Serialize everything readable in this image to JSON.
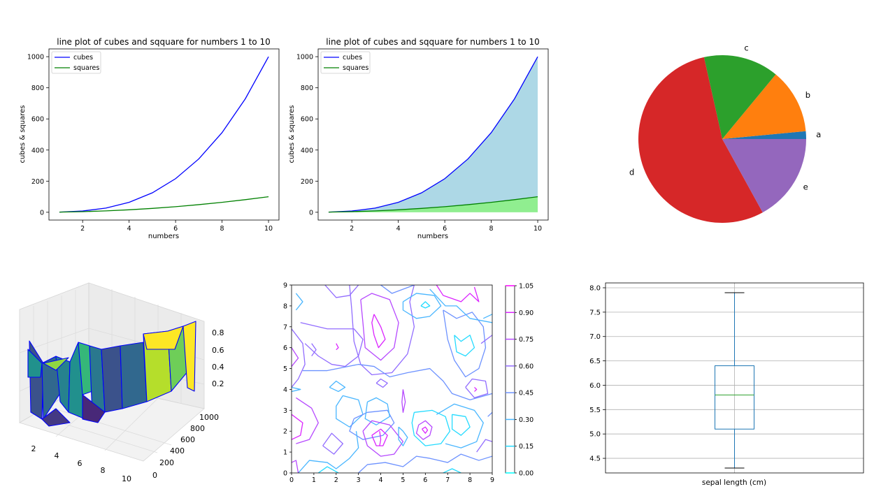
{
  "chart_data": [
    {
      "type": "line",
      "title": "line plot of cubes and sqquare for numbers 1 to 10",
      "xlabel": "numbers",
      "ylabel": "cubes & squares",
      "x": [
        1,
        2,
        3,
        4,
        5,
        6,
        7,
        8,
        9,
        10
      ],
      "xlim": [
        0.55,
        10.45
      ],
      "ylim": [
        -50,
        1050
      ],
      "xticks": [
        2,
        4,
        6,
        8,
        10
      ],
      "yticks": [
        0,
        200,
        400,
        600,
        800,
        1000
      ],
      "legend": "upper-left",
      "series": [
        {
          "name": "cubes",
          "values": [
            1,
            8,
            27,
            64,
            125,
            216,
            343,
            512,
            729,
            1000
          ],
          "color": "#0000ff"
        },
        {
          "name": "squares",
          "values": [
            1,
            4,
            9,
            16,
            25,
            36,
            49,
            64,
            81,
            100
          ],
          "color": "#008000"
        }
      ]
    },
    {
      "type": "area",
      "title": "line plot of cubes and sqquare for numbers 1 to 10",
      "xlabel": "numbers",
      "ylabel": "cubes & squares",
      "x": [
        1,
        2,
        3,
        4,
        5,
        6,
        7,
        8,
        9,
        10
      ],
      "xlim": [
        0.55,
        10.45
      ],
      "ylim": [
        -50,
        1050
      ],
      "xticks": [
        2,
        4,
        6,
        8,
        10
      ],
      "yticks": [
        0,
        200,
        400,
        600,
        800,
        1000
      ],
      "legend": "upper-left",
      "series": [
        {
          "name": "cubes",
          "values": [
            1,
            8,
            27,
            64,
            125,
            216,
            343,
            512,
            729,
            1000
          ],
          "color": "#0000ff",
          "fill": "#add8e6"
        },
        {
          "name": "squares",
          "values": [
            1,
            4,
            9,
            16,
            25,
            36,
            49,
            64,
            81,
            100
          ],
          "color": "#008000",
          "fill": "#90ee90"
        }
      ]
    },
    {
      "type": "pie",
      "labels": [
        "a",
        "b",
        "c",
        "d",
        "e"
      ],
      "values": [
        1.5,
        12.5,
        14.5,
        54.5,
        17
      ],
      "colors": [
        "#1f77b4",
        "#ff7f0e",
        "#2ca02c",
        "#d62728",
        "#9467bd"
      ]
    },
    {
      "type": "surface3d",
      "xticks": [
        2,
        4,
        6,
        8,
        10
      ],
      "yticks": [
        0,
        200,
        400,
        600,
        800,
        1000
      ],
      "zticks": [
        "0.2",
        "0.4",
        "0.6",
        "0.8"
      ],
      "edge_color": "#0000ff",
      "colormap": "viridis"
    },
    {
      "type": "contour",
      "xlim": [
        0,
        9
      ],
      "ylim": [
        0,
        9
      ],
      "xticks": [
        0,
        1,
        2,
        3,
        4,
        5,
        6,
        7,
        8,
        9
      ],
      "yticks": [
        0,
        1,
        2,
        3,
        4,
        5,
        6,
        7,
        8,
        9
      ],
      "levels": [
        "0.00",
        "0.15",
        "0.30",
        "0.45",
        "0.60",
        "0.75",
        "0.90",
        "1.05"
      ],
      "colormap": "cool"
    },
    {
      "type": "box",
      "xlabel": "sepal length (cm)",
      "ylim": [
        4.2,
        8.1
      ],
      "yticks": [
        "4.5",
        "5.0",
        "5.5",
        "6.0",
        "6.5",
        "7.0",
        "7.5",
        "8.0"
      ],
      "min": 4.3,
      "q1": 5.1,
      "median": 5.8,
      "q3": 6.4,
      "max": 7.9,
      "grid": true
    }
  ]
}
